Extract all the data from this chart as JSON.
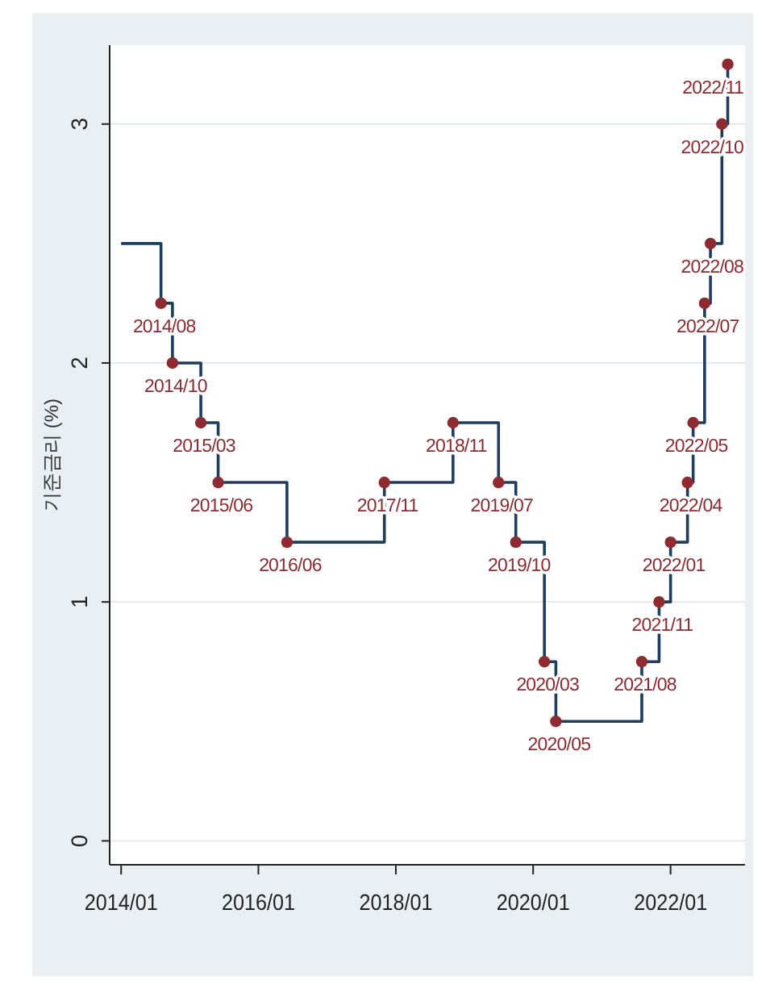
{
  "chart_data": {
    "type": "step",
    "ylabel": "기준금리 (%)",
    "xlim": [
      "2013-11",
      "2023-02"
    ],
    "ylim": [
      -0.1,
      3.33
    ],
    "xticks": [
      {
        "value": "2014-01",
        "label": "2014/01"
      },
      {
        "value": "2016-01",
        "label": "2016/01"
      },
      {
        "value": "2018-01",
        "label": "2018/01"
      },
      {
        "value": "2020-01",
        "label": "2020/01"
      },
      {
        "value": "2022-01",
        "label": "2022/01"
      }
    ],
    "yticks": [
      0,
      1,
      2,
      3
    ],
    "grid": "y",
    "series": [
      {
        "color": "#1f3d5c",
        "marker": "none",
        "x": [
          "2014-01",
          "2014-08",
          "2014-10",
          "2015-03",
          "2015-06",
          "2016-06",
          "2017-11",
          "2018-11",
          "2019-07",
          "2019-10",
          "2020-03",
          "2020-05",
          "2021-08",
          "2021-11",
          "2022-01",
          "2022-04",
          "2022-05",
          "2022-07",
          "2022-08",
          "2022-10",
          "2022-11"
        ],
        "values": [
          2.5,
          2.25,
          2.0,
          1.75,
          1.5,
          1.25,
          1.5,
          1.75,
          1.5,
          1.25,
          0.75,
          0.5,
          0.75,
          1.0,
          1.25,
          1.5,
          1.75,
          2.25,
          2.5,
          3.0,
          3.25
        ]
      },
      {
        "type": "scatter",
        "color": "#8e2a30",
        "marker": "circle",
        "x": [
          "2014-08",
          "2014-10",
          "2015-03",
          "2015-06",
          "2016-06",
          "2017-11",
          "2018-11",
          "2019-07",
          "2019-10",
          "2020-03",
          "2020-05",
          "2021-08",
          "2021-11",
          "2022-01",
          "2022-04",
          "2022-05",
          "2022-07",
          "2022-08",
          "2022-10",
          "2022-11"
        ],
        "values": [
          2.25,
          2.0,
          1.75,
          1.5,
          1.25,
          1.5,
          1.75,
          1.5,
          1.25,
          0.75,
          0.5,
          0.75,
          1.0,
          1.25,
          1.5,
          1.75,
          2.25,
          2.5,
          3.0,
          3.25
        ]
      }
    ],
    "annotations": [
      {
        "text": "2014/08",
        "x": "2014-08",
        "y": 2.25
      },
      {
        "text": "2014/10",
        "x": "2014-10",
        "y": 2.0
      },
      {
        "text": "2015/03",
        "x": "2015-03",
        "y": 1.75
      },
      {
        "text": "2015/06",
        "x": "2015-06",
        "y": 1.5
      },
      {
        "text": "2016/06",
        "x": "2016-06",
        "y": 1.25
      },
      {
        "text": "2017/11",
        "x": "2017-11",
        "y": 1.5
      },
      {
        "text": "2018/11",
        "x": "2018-11",
        "y": 1.75
      },
      {
        "text": "2019/07",
        "x": "2019-07",
        "y": 1.5
      },
      {
        "text": "2019/10",
        "x": "2019-10",
        "y": 1.25
      },
      {
        "text": "2020/03",
        "x": "2020-03",
        "y": 0.75
      },
      {
        "text": "2020/05",
        "x": "2020-05",
        "y": 0.5
      },
      {
        "text": "2021/08",
        "x": "2021-08",
        "y": 0.75
      },
      {
        "text": "2021/11",
        "x": "2021-11",
        "y": 1.0
      },
      {
        "text": "2022/01",
        "x": "2022-01",
        "y": 1.25
      },
      {
        "text": "2022/04",
        "x": "2022-04",
        "y": 1.5
      },
      {
        "text": "2022/05",
        "x": "2022-05",
        "y": 1.75
      },
      {
        "text": "2022/07",
        "x": "2022-07",
        "y": 2.25
      },
      {
        "text": "2022/08",
        "x": "2022-08",
        "y": 2.5
      },
      {
        "text": "2022/10",
        "x": "2022-10",
        "y": 3.0
      },
      {
        "text": "2022/11",
        "x": "2022-11",
        "y": 3.25
      }
    ]
  }
}
